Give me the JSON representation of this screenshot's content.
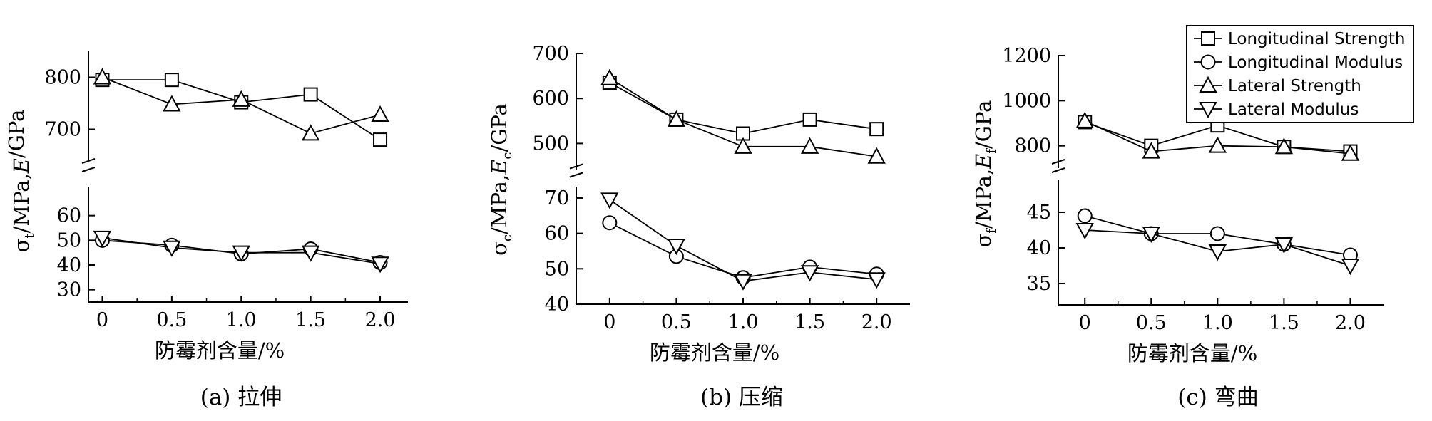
{
  "chart_data": [
    {
      "type": "line",
      "caption": "(a)  拉伸",
      "xlabel": "防霉剂含量/%",
      "ylabel_sigma": "σ",
      "ylabel_sub1": "t",
      "ylabel_mid": "/MPa,",
      "ylabel_E": "E",
      "ylabel_sub2": "",
      "ylabel_end": "/GPa",
      "x": [
        0,
        0.5,
        1.0,
        1.5,
        2.0
      ],
      "x_tick_labels": [
        "0",
        "0.5",
        "1.0",
        "1.5",
        "2.0"
      ],
      "xlim": [
        -0.1,
        2.2
      ],
      "axis_break": true,
      "upper": {
        "ylim": [
          650,
          850
        ],
        "ticks": [
          700,
          800
        ],
        "tick_labels": [
          "700",
          "800"
        ]
      },
      "lower": {
        "ylim": [
          25,
          70
        ],
        "ticks": [
          30,
          40,
          50,
          60
        ],
        "tick_labels": [
          "30",
          "40",
          "50",
          "60"
        ]
      },
      "series": [
        {
          "name": "Longitudinal Strength",
          "marker": "square",
          "panel": "upper",
          "values": [
            795,
            795,
            752,
            767,
            680
          ]
        },
        {
          "name": "Lateral Strength",
          "marker": "triangle-up",
          "panel": "upper",
          "values": [
            800,
            748,
            757,
            692,
            728
          ]
        },
        {
          "name": "Longitudinal Modulus",
          "marker": "circle",
          "panel": "lower",
          "values": [
            50,
            48,
            44.5,
            46.5,
            41
          ]
        },
        {
          "name": "Lateral Modulus",
          "marker": "triangle-down",
          "panel": "lower",
          "values": [
            51,
            47,
            45,
            45,
            40.5
          ]
        }
      ]
    },
    {
      "type": "line",
      "caption": "(b) 压缩",
      "xlabel": "防霉剂含量/%",
      "ylabel_sigma": "σ",
      "ylabel_sub1": "c",
      "ylabel_mid": "/MPa,",
      "ylabel_E": "E",
      "ylabel_sub2": "c",
      "ylabel_end": "/GPa",
      "x": [
        0,
        0.5,
        1.0,
        1.5,
        2.0
      ],
      "x_tick_labels": [
        "0",
        "0.5",
        "1.0",
        "1.5",
        "2.0"
      ],
      "xlim": [
        -0.25,
        2.25
      ],
      "axis_break": true,
      "upper": {
        "ylim": [
          450,
          700
        ],
        "ticks": [
          500,
          600,
          700
        ],
        "tick_labels": [
          "500",
          "600",
          "700"
        ]
      },
      "lower": {
        "ylim": [
          40,
          72
        ],
        "ticks": [
          40,
          50,
          60,
          70
        ],
        "tick_labels": [
          "40",
          "50",
          "60",
          "70"
        ]
      },
      "series": [
        {
          "name": "Longitudinal Strength",
          "marker": "square",
          "panel": "upper",
          "values": [
            635,
            553,
            522,
            553,
            532
          ]
        },
        {
          "name": "Lateral Strength",
          "marker": "triangle-up",
          "panel": "upper",
          "values": [
            645,
            553,
            493,
            493,
            471
          ]
        },
        {
          "name": "Longitudinal Modulus",
          "marker": "circle",
          "panel": "lower",
          "values": [
            63,
            53.5,
            47.5,
            50.5,
            48.5
          ]
        },
        {
          "name": "Lateral Modulus",
          "marker": "triangle-down",
          "panel": "lower",
          "values": [
            69.5,
            56.5,
            46.5,
            49,
            47
          ]
        }
      ]
    },
    {
      "type": "line",
      "caption": "(c)  弯曲",
      "xlabel": "防霉剂含量/%",
      "ylabel_sigma": "σ",
      "ylabel_sub1": "f",
      "ylabel_mid": "/MPa,",
      "ylabel_E": "E",
      "ylabel_sub2": "f",
      "ylabel_end": "/GPa",
      "x": [
        0,
        0.5,
        1.0,
        1.5,
        2.0
      ],
      "x_tick_labels": [
        "0",
        "0.5",
        "1.0",
        "1.5",
        "2.0"
      ],
      "xlim": [
        -0.2,
        2.25
      ],
      "axis_break": true,
      "upper": {
        "ylim": [
          720,
          1200
        ],
        "ticks": [
          800,
          1000,
          1200
        ],
        "tick_labels": [
          "800",
          "1000",
          "1200"
        ]
      },
      "lower": {
        "ylim": [
          32,
          49
        ],
        "ticks": [
          35,
          40,
          45
        ],
        "tick_labels": [
          "35",
          "40",
          "45"
        ]
      },
      "series": [
        {
          "name": "Longitudinal Strength",
          "marker": "square",
          "panel": "upper",
          "values": [
            905,
            800,
            890,
            795,
            775
          ]
        },
        {
          "name": "Lateral Strength",
          "marker": "triangle-up",
          "panel": "upper",
          "values": [
            910,
            775,
            800,
            795,
            765
          ]
        },
        {
          "name": "Longitudinal Modulus",
          "marker": "circle",
          "panel": "lower",
          "values": [
            44.5,
            42,
            42,
            40.5,
            39
          ]
        },
        {
          "name": "Lateral Modulus",
          "marker": "triangle-down",
          "panel": "lower",
          "values": [
            42.5,
            42,
            39.5,
            40.5,
            37.5
          ]
        }
      ],
      "legend": {
        "placement": "top-right",
        "entries": [
          {
            "label": "Longitudinal Strength",
            "marker": "square"
          },
          {
            "label": "Longitudinal Modulus",
            "marker": "circle"
          },
          {
            "label": "Lateral Strength",
            "marker": "triangle-up"
          },
          {
            "label": "Lateral Modulus",
            "marker": "triangle-down"
          }
        ]
      }
    }
  ]
}
